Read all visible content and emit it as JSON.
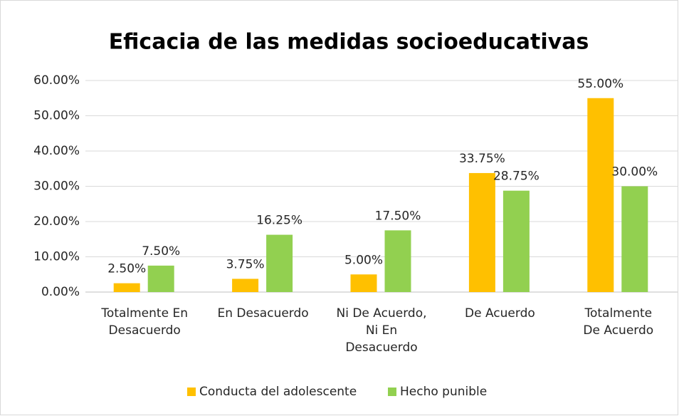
{
  "chart_data": {
    "type": "bar",
    "title": "Eficacia  de las medidas socioeducativas",
    "categories": [
      "Totalmente En\nDesacuerdo",
      "En Desacuerdo",
      "Ni De Acuerdo,\nNi En\nDesacuerdo",
      "De Acuerdo",
      "Totalmente\nDe Acuerdo"
    ],
    "series": [
      {
        "name": "Conducta del adolescente",
        "color": "#ffc000",
        "values": [
          2.5,
          3.75,
          5,
          33.75,
          55
        ],
        "value_labels": [
          "2.50%",
          "3.75%",
          "5.00%",
          "33.75%",
          "55.00%"
        ]
      },
      {
        "name": "Hecho punible",
        "color": "#92d050",
        "values": [
          7.5,
          16.25,
          17.5,
          28.75,
          30
        ],
        "value_labels": [
          "7.50%",
          "16.25%",
          "17.50%",
          "28.75%",
          "30.00%"
        ]
      }
    ],
    "ylim": [
      0,
      60
    ],
    "yticks": [
      {
        "value": 0,
        "label": "0.00%"
      },
      {
        "value": 10,
        "label": "10.00%"
      },
      {
        "value": 20,
        "label": "20.00%"
      },
      {
        "value": 30,
        "label": "30.00%"
      },
      {
        "value": 40,
        "label": "40.00%"
      },
      {
        "value": 50,
        "label": "50.00%"
      },
      {
        "value": 60,
        "label": "60.00%"
      }
    ],
    "grid": true,
    "legend": "bottom"
  }
}
